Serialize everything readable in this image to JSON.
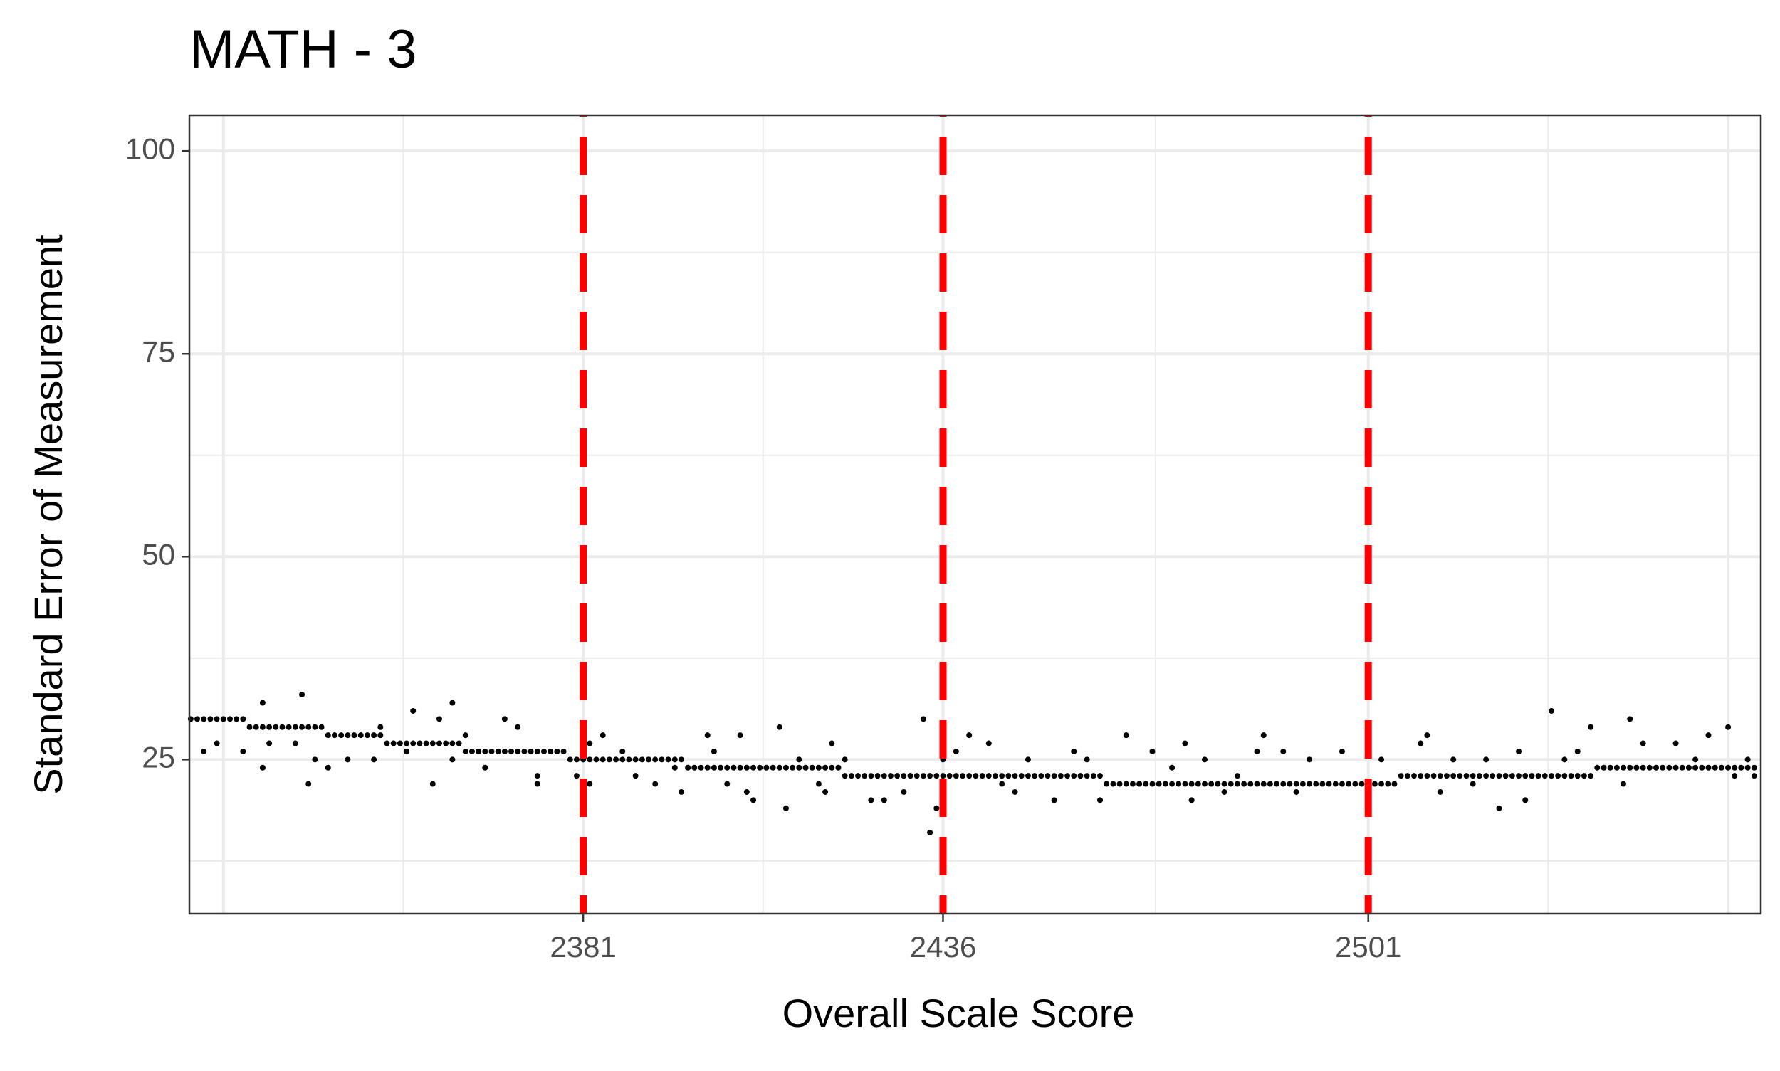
{
  "chart_data": {
    "type": "scatter",
    "title": "MATH - 3",
    "x_label": "Overall Scale Score",
    "y_label": "Standard Error of Measurement",
    "color": "#000000",
    "x": [
      2321,
      2322,
      2323,
      2324,
      2325,
      2326,
      2327,
      2328,
      2329,
      2330,
      2331,
      2332,
      2333,
      2334,
      2335,
      2336,
      2337,
      2338,
      2339,
      2340,
      2341,
      2342,
      2343,
      2344,
      2345,
      2346,
      2347,
      2348,
      2349,
      2350,
      2351,
      2352,
      2353,
      2354,
      2355,
      2356,
      2357,
      2358,
      2359,
      2360,
      2361,
      2362,
      2363,
      2364,
      2365,
      2366,
      2367,
      2368,
      2369,
      2370,
      2371,
      2372,
      2373,
      2374,
      2375,
      2376,
      2377,
      2378,
      2379,
      2380,
      2381,
      2382,
      2383,
      2384,
      2385,
      2386,
      2387,
      2388,
      2389,
      2390,
      2391,
      2392,
      2393,
      2394,
      2395,
      2396,
      2397,
      2398,
      2399,
      2400,
      2401,
      2402,
      2403,
      2404,
      2405,
      2406,
      2407,
      2408,
      2409,
      2410,
      2411,
      2412,
      2413,
      2414,
      2415,
      2416,
      2417,
      2418,
      2419,
      2420,
      2421,
      2422,
      2423,
      2424,
      2425,
      2426,
      2427,
      2428,
      2429,
      2430,
      2431,
      2432,
      2433,
      2434,
      2435,
      2436,
      2437,
      2438,
      2439,
      2440,
      2441,
      2442,
      2443,
      2444,
      2445,
      2446,
      2447,
      2448,
      2449,
      2450,
      2451,
      2452,
      2453,
      2454,
      2455,
      2456,
      2457,
      2458,
      2459,
      2460,
      2461,
      2462,
      2463,
      2464,
      2465,
      2466,
      2467,
      2468,
      2469,
      2470,
      2471,
      2472,
      2473,
      2474,
      2475,
      2476,
      2477,
      2478,
      2479,
      2480,
      2481,
      2482,
      2483,
      2484,
      2485,
      2486,
      2487,
      2488,
      2489,
      2490,
      2491,
      2492,
      2493,
      2494,
      2495,
      2496,
      2497,
      2498,
      2499,
      2500,
      2501,
      2502,
      2503,
      2504,
      2505,
      2506,
      2507,
      2508,
      2509,
      2510,
      2511,
      2512,
      2513,
      2514,
      2515,
      2516,
      2517,
      2518,
      2519,
      2520,
      2521,
      2522,
      2523,
      2524,
      2525,
      2526,
      2527,
      2528,
      2529,
      2530,
      2531,
      2532,
      2533,
      2534,
      2535,
      2536,
      2537,
      2538,
      2539,
      2540,
      2541,
      2542,
      2543,
      2544,
      2545,
      2546,
      2547,
      2548,
      2549,
      2550,
      2551,
      2552,
      2553,
      2554,
      2555,
      2556,
      2557,
      2558,
      2559,
      2560,
      2332,
      2338,
      2339,
      2323,
      2325,
      2329,
      2332,
      2333,
      2337,
      2340,
      2342,
      2345,
      2349,
      2350,
      2355,
      2354,
      2358,
      2359,
      2361,
      2361,
      2363,
      2366,
      2369,
      2371,
      2374,
      2374,
      2377,
      2380,
      2382,
      2382,
      2384,
      2387,
      2389,
      2391,
      2392,
      2395,
      2396,
      2400,
      2401,
      2403,
      2405,
      2406,
      2407,
      2411,
      2412,
      2414,
      2417,
      2418,
      2419,
      2421,
      2425,
      2427,
      2430,
      2431,
      2433,
      2434,
      2435,
      2436,
      2438,
      2440,
      2443,
      2445,
      2447,
      2449,
      2453,
      2456,
      2458,
      2460,
      2464,
      2466,
      2468,
      2471,
      2473,
      2474,
      2476,
      2479,
      2481,
      2484,
      2485,
      2488,
      2490,
      2492,
      2497,
      2503,
      2509,
      2510,
      2512,
      2514,
      2517,
      2519,
      2521,
      2524,
      2525,
      2526,
      2529,
      2531,
      2533,
      2535,
      2540,
      2541,
      2543,
      2548,
      2551,
      2553,
      2556,
      2557,
      2559,
      2560
    ],
    "values": [
      30,
      30,
      30,
      30,
      30,
      30,
      30,
      30,
      30,
      29,
      29,
      29,
      29,
      29,
      29,
      29,
      29,
      29,
      29,
      29,
      29,
      28,
      28,
      28,
      28,
      28,
      28,
      28,
      28,
      28,
      27,
      27,
      27,
      27,
      27,
      27,
      27,
      27,
      27,
      27,
      27,
      27,
      26,
      26,
      26,
      26,
      26,
      26,
      26,
      26,
      26,
      26,
      26,
      26,
      26,
      26,
      26,
      26,
      25,
      25,
      25,
      25,
      25,
      25,
      25,
      25,
      25,
      25,
      25,
      25,
      25,
      25,
      25,
      25,
      25,
      25,
      24,
      24,
      24,
      24,
      24,
      24,
      24,
      24,
      24,
      24,
      24,
      24,
      24,
      24,
      24,
      24,
      24,
      24,
      24,
      24,
      24,
      24,
      24,
      24,
      23,
      23,
      23,
      23,
      23,
      23,
      23,
      23,
      23,
      23,
      23,
      23,
      23,
      23,
      23,
      23,
      23,
      23,
      23,
      23,
      23,
      23,
      23,
      23,
      23,
      23,
      23,
      23,
      23,
      23,
      23,
      23,
      23,
      23,
      23,
      23,
      23,
      23,
      23,
      23,
      22,
      22,
      22,
      22,
      22,
      22,
      22,
      22,
      22,
      22,
      22,
      22,
      22,
      22,
      22,
      22,
      22,
      22,
      22,
      22,
      22,
      22,
      22,
      22,
      22,
      22,
      22,
      22,
      22,
      22,
      22,
      22,
      22,
      22,
      22,
      22,
      22,
      22,
      22,
      22,
      22,
      22,
      22,
      22,
      22,
      23,
      23,
      23,
      23,
      23,
      23,
      23,
      23,
      23,
      23,
      23,
      23,
      23,
      23,
      23,
      23,
      23,
      23,
      23,
      23,
      23,
      23,
      23,
      23,
      23,
      23,
      23,
      23,
      23,
      23,
      24,
      24,
      24,
      24,
      24,
      24,
      24,
      24,
      24,
      24,
      24,
      24,
      24,
      24,
      24,
      24,
      24,
      24,
      24,
      24,
      24,
      24,
      24,
      24,
      24,
      32,
      33,
      22,
      26,
      27,
      26,
      24,
      27,
      27,
      25,
      24,
      25,
      25,
      29,
      31,
      26,
      22,
      30,
      32,
      25,
      28,
      24,
      30,
      29,
      22,
      23,
      26,
      23,
      22,
      27,
      28,
      26,
      23,
      25,
      22,
      24,
      21,
      28,
      26,
      22,
      28,
      21,
      20,
      29,
      19,
      25,
      22,
      21,
      27,
      25,
      20,
      20,
      21,
      23,
      30,
      16,
      19,
      25,
      26,
      28,
      27,
      22,
      21,
      25,
      20,
      26,
      25,
      20,
      28,
      22,
      26,
      24,
      27,
      20,
      25,
      21,
      23,
      26,
      28,
      26,
      21,
      25,
      26,
      25,
      27,
      28,
      21,
      25,
      22,
      25,
      19,
      26,
      20,
      23,
      31,
      25,
      26,
      29,
      22,
      30,
      27,
      27,
      25,
      28,
      29,
      23,
      25,
      23
    ],
    "xlim": [
      2320.8,
      2561
    ],
    "ylim": [
      6,
      104.4
    ],
    "xticks": [
      2381,
      2436,
      2501
    ],
    "yticks": [
      25,
      50,
      75,
      100
    ],
    "x_major_gridlines": [
      2326,
      2381,
      2436,
      2501,
      2556
    ],
    "x_minor_gridlines": [
      2353.5,
      2408.5,
      2468.5,
      2528.5
    ],
    "y_minor_gridlines": [
      12.5,
      37.5,
      62.5,
      87.5
    ],
    "vlines": [
      2381,
      2436,
      2501
    ],
    "vline_color": "#ff0000",
    "grid": true
  }
}
